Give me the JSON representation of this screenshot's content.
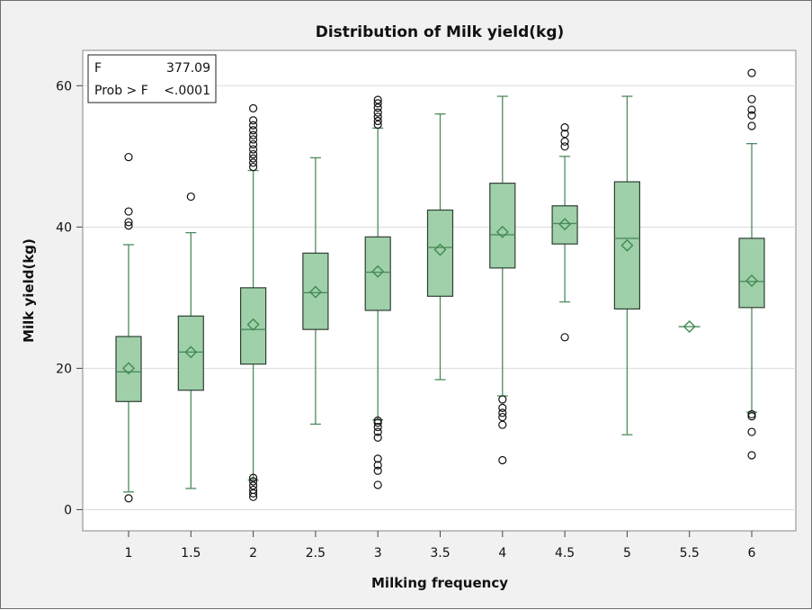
{
  "chart_data": {
    "type": "box",
    "title": "Distribution of Milk yield(kg)",
    "xlabel": "Milking frequency",
    "ylabel": "Milk yield(kg)",
    "ylim": [
      -3,
      65
    ],
    "yticks": [
      0,
      20,
      40,
      60
    ],
    "grid": true,
    "stats": [
      {
        "label": "F",
        "value": "377.09"
      },
      {
        "label": "Prob > F",
        "value": "<.0001"
      }
    ],
    "colors": {
      "box_fill": "#9fd0a9",
      "line": "#4e8a5c",
      "mean": "#3f8a50",
      "grid": "#dcdcdc",
      "panel": "#ffffff"
    },
    "categories": [
      "1",
      "1.5",
      "2",
      "2.5",
      "3",
      "3.5",
      "4",
      "4.5",
      "5",
      "5.5",
      "6"
    ],
    "boxes": [
      {
        "x": "1",
        "low": 2.5,
        "q1": 15.3,
        "median": 19.5,
        "q3": 24.5,
        "high": 37.5,
        "mean": 20.0,
        "outliers": [
          1.6,
          40.2,
          40.7,
          42.2,
          49.9
        ]
      },
      {
        "x": "1.5",
        "low": 3.0,
        "q1": 16.9,
        "median": 22.3,
        "q3": 27.4,
        "high": 39.2,
        "mean": 22.3,
        "outliers": [
          44.3
        ]
      },
      {
        "x": "2",
        "low": 4.2,
        "q1": 20.6,
        "median": 25.5,
        "q3": 31.4,
        "high": 48.0,
        "mean": 26.2,
        "outliers": [
          1.8,
          2.3,
          2.8,
          3.4,
          4.0,
          4.5,
          48.5,
          49.1,
          49.7,
          50.3,
          51.0,
          51.7,
          52.4,
          53.0,
          53.7,
          54.4,
          55.1,
          56.8
        ]
      },
      {
        "x": "2.5",
        "low": 12.1,
        "q1": 25.5,
        "median": 30.7,
        "q3": 36.3,
        "high": 49.8,
        "mean": 30.8,
        "outliers": []
      },
      {
        "x": "3",
        "low": 12.7,
        "q1": 28.2,
        "median": 33.6,
        "q3": 38.6,
        "high": 54.0,
        "mean": 33.7,
        "outliers": [
          3.5,
          5.5,
          6.3,
          7.2,
          10.2,
          11.0,
          11.7,
          12.3,
          12.6,
          54.5,
          55.0,
          55.6,
          56.2,
          56.9,
          57.5,
          58.0
        ]
      },
      {
        "x": "3.5",
        "low": 18.4,
        "q1": 30.2,
        "median": 37.1,
        "q3": 42.4,
        "high": 56.0,
        "mean": 36.8,
        "outliers": []
      },
      {
        "x": "4",
        "low": 16.1,
        "q1": 34.2,
        "median": 38.9,
        "q3": 46.2,
        "high": 58.5,
        "mean": 39.3,
        "outliers": [
          7.0,
          12.0,
          13.1,
          13.7,
          14.4,
          15.6
        ]
      },
      {
        "x": "4.5",
        "low": 29.4,
        "q1": 37.6,
        "median": 40.5,
        "q3": 43.0,
        "high": 50.0,
        "mean": 40.4,
        "outliers": [
          24.4,
          51.4,
          52.1,
          53.2,
          54.1
        ]
      },
      {
        "x": "5",
        "low": 10.6,
        "q1": 28.4,
        "median": 38.4,
        "q3": 46.4,
        "high": 58.5,
        "mean": 37.4,
        "outliers": []
      },
      {
        "x": "5.5",
        "low": 25.9,
        "q1": 25.9,
        "median": 25.9,
        "q3": 25.9,
        "high": 25.9,
        "mean": 25.9,
        "outliers": []
      },
      {
        "x": "6",
        "low": 13.8,
        "q1": 28.6,
        "median": 32.3,
        "q3": 38.4,
        "high": 51.8,
        "mean": 32.4,
        "outliers": [
          7.7,
          11.0,
          13.2,
          13.5,
          54.3,
          55.8,
          56.6,
          58.1,
          61.8
        ]
      }
    ]
  }
}
